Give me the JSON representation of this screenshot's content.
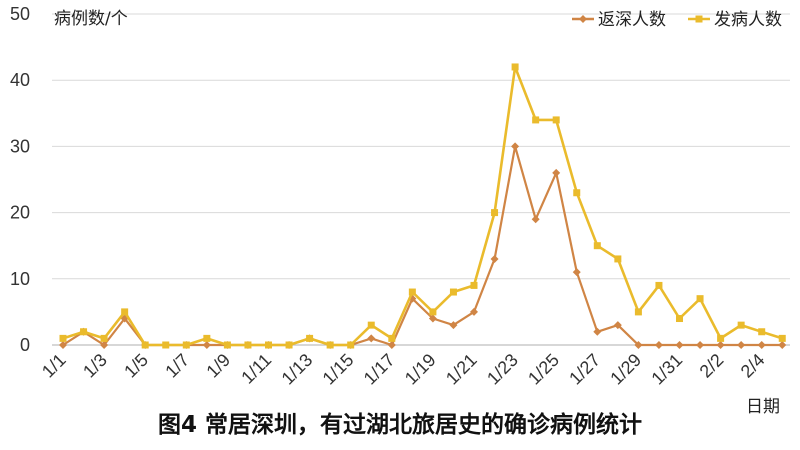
{
  "chart_data": {
    "type": "line",
    "title": "",
    "caption": "图4 常居深圳，有过湖北旅居史的确诊病例统计",
    "ylabel": "病例数/个",
    "xlabel": "日期",
    "ylim": [
      0,
      50
    ],
    "yticks": [
      0,
      10,
      20,
      30,
      40,
      50
    ],
    "grid": true,
    "legend_position": "top-right",
    "x": [
      "1/1",
      "1/2",
      "1/3",
      "1/4",
      "1/5",
      "1/6",
      "1/7",
      "1/8",
      "1/9",
      "1/10",
      "1/11",
      "1/12",
      "1/13",
      "1/14",
      "1/15",
      "1/16",
      "1/17",
      "1/18",
      "1/19",
      "1/20",
      "1/21",
      "1/22",
      "1/23",
      "1/24",
      "1/25",
      "1/26",
      "1/27",
      "1/28",
      "1/29",
      "1/30",
      "1/31",
      "2/1",
      "2/2",
      "2/3",
      "2/4",
      "2/5"
    ],
    "xtick_labels": [
      "1/1",
      "1/3",
      "1/5",
      "1/7",
      "1/9",
      "1/11",
      "1/13",
      "1/15",
      "1/17",
      "1/19",
      "1/21",
      "1/23",
      "1/25",
      "1/27",
      "1/29",
      "1/31",
      "2/2",
      "2/4"
    ],
    "series": [
      {
        "name": "返深人数",
        "color": "#d08545",
        "marker": "diamond",
        "values": [
          0,
          2,
          0,
          4,
          0,
          null,
          0,
          0,
          0,
          0,
          0,
          0,
          1,
          0,
          0,
          1,
          0,
          7,
          4,
          3,
          5,
          13,
          30,
          19,
          26,
          11,
          2,
          3,
          0,
          0,
          0,
          0,
          0,
          0,
          0,
          0
        ]
      },
      {
        "name": "发病人数",
        "color": "#eabb2c",
        "marker": "square",
        "values": [
          1,
          2,
          1,
          5,
          0,
          0,
          0,
          1,
          0,
          0,
          0,
          0,
          1,
          0,
          0,
          3,
          1,
          8,
          5,
          8,
          9,
          20,
          42,
          34,
          34,
          23,
          15,
          13,
          5,
          9,
          4,
          7,
          1,
          3,
          2,
          1
        ]
      }
    ]
  }
}
